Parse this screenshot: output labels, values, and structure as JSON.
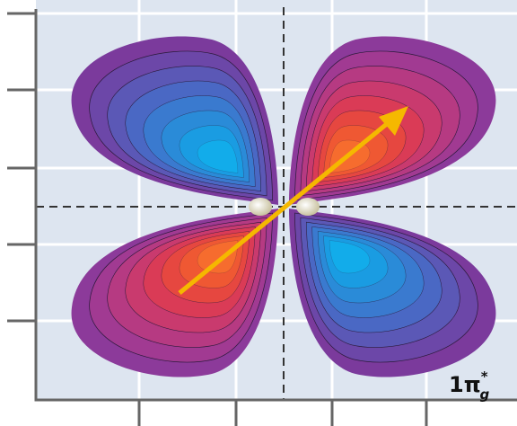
{
  "label": {
    "main": "1π",
    "superscript": "*",
    "subscript": "g"
  }
}
